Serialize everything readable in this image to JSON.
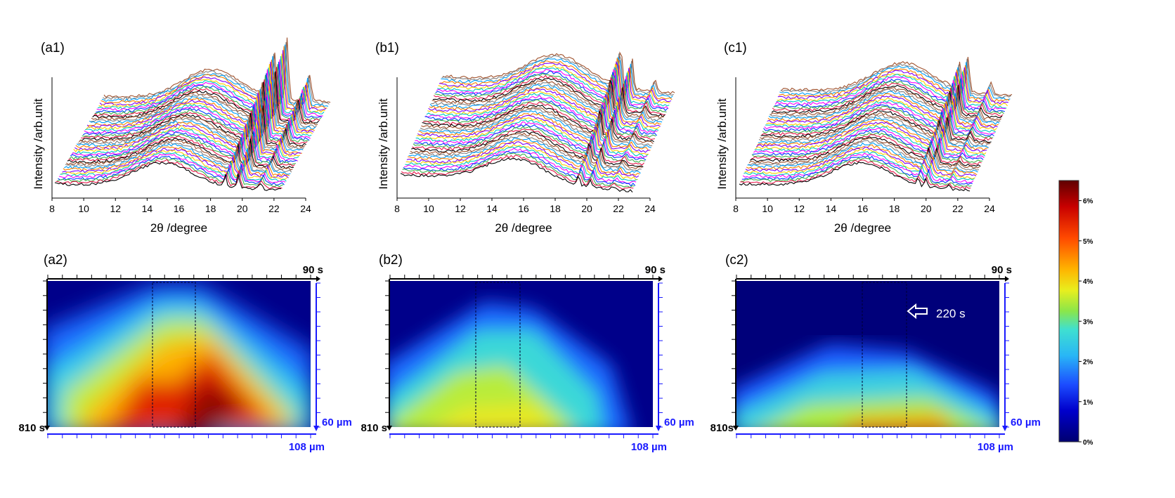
{
  "panels_top": [
    {
      "id": "a1",
      "label": "(a1)",
      "ylabel": "Intensity /arb.unit",
      "xlabel": "2θ /degree"
    },
    {
      "id": "b1",
      "label": "(b1)",
      "ylabel": "Intensity /arb.unit",
      "xlabel": "2θ /degree"
    },
    {
      "id": "c1",
      "label": "(c1)",
      "ylabel": "Intensity /arb.unit",
      "xlabel": "2θ /degree"
    }
  ],
  "panels_bottom": [
    {
      "id": "a2",
      "label": "(a2)",
      "time_top": "90 s",
      "time_bottom": "810 s",
      "depth": "60 µm",
      "width": "108 µm",
      "annotation": ""
    },
    {
      "id": "b2",
      "label": "(b2)",
      "time_top": "90 s",
      "time_bottom": "810 s",
      "depth": "60 µm",
      "width": "108 µm",
      "annotation": ""
    },
    {
      "id": "c2",
      "label": "(c2)",
      "time_top": "90 s",
      "time_bottom": "810s",
      "depth": "60 µm",
      "width": "108 µm",
      "annotation": "220 s"
    }
  ],
  "colorbar": {
    "ticks": [
      "6%",
      "5%",
      "4%",
      "3%",
      "2%",
      "1%",
      "0%"
    ],
    "values": [
      6,
      5,
      4,
      3,
      2,
      1,
      0
    ],
    "range": [
      0,
      6.5
    ]
  },
  "chart_data": [
    {
      "type": "line",
      "panel": "a1",
      "xlabel": "2θ /degree",
      "ylabel": "Intensity /arb.unit",
      "xlim": [
        8,
        24
      ],
      "xticks": [
        8,
        10,
        12,
        14,
        16,
        18,
        20,
        22,
        24
      ],
      "features": {
        "amorphous_halo_center": 15.5,
        "crystalline_peaks": [
          19.2,
          20.0,
          21.5
        ]
      }
    },
    {
      "type": "line",
      "panel": "b1",
      "xlabel": "2θ /degree",
      "ylabel": "Intensity /arb.unit",
      "xlim": [
        8,
        24
      ],
      "xticks": [
        8,
        10,
        12,
        14,
        16,
        18,
        20,
        22,
        24
      ],
      "features": {
        "amorphous_halo_center": 15.5,
        "crystalline_peaks": [
          19.3,
          20.1
        ]
      }
    },
    {
      "type": "line",
      "panel": "c1",
      "xlabel": "2θ /degree",
      "ylabel": "Intensity /arb.unit",
      "xlim": [
        8,
        24
      ],
      "xticks": [
        8,
        10,
        12,
        14,
        16,
        18,
        20,
        22,
        24
      ],
      "features": {
        "amorphous_halo_center": 16.0,
        "crystalline_peaks": [
          20.0,
          21.4
        ]
      }
    },
    {
      "type": "heatmap",
      "panel": "a2",
      "x_range_um": [
        0,
        108
      ],
      "y_range_s": [
        90,
        810
      ],
      "colorscale_pct": [
        0,
        6.5
      ]
    },
    {
      "type": "heatmap",
      "panel": "b2",
      "x_range_um": [
        0,
        108
      ],
      "y_range_s": [
        90,
        810
      ],
      "colorscale_pct": [
        0,
        6.5
      ]
    },
    {
      "type": "heatmap",
      "panel": "c2",
      "x_range_um": [
        0,
        108
      ],
      "y_range_s": [
        90,
        810
      ],
      "colorscale_pct": [
        0,
        6.5
      ]
    }
  ]
}
